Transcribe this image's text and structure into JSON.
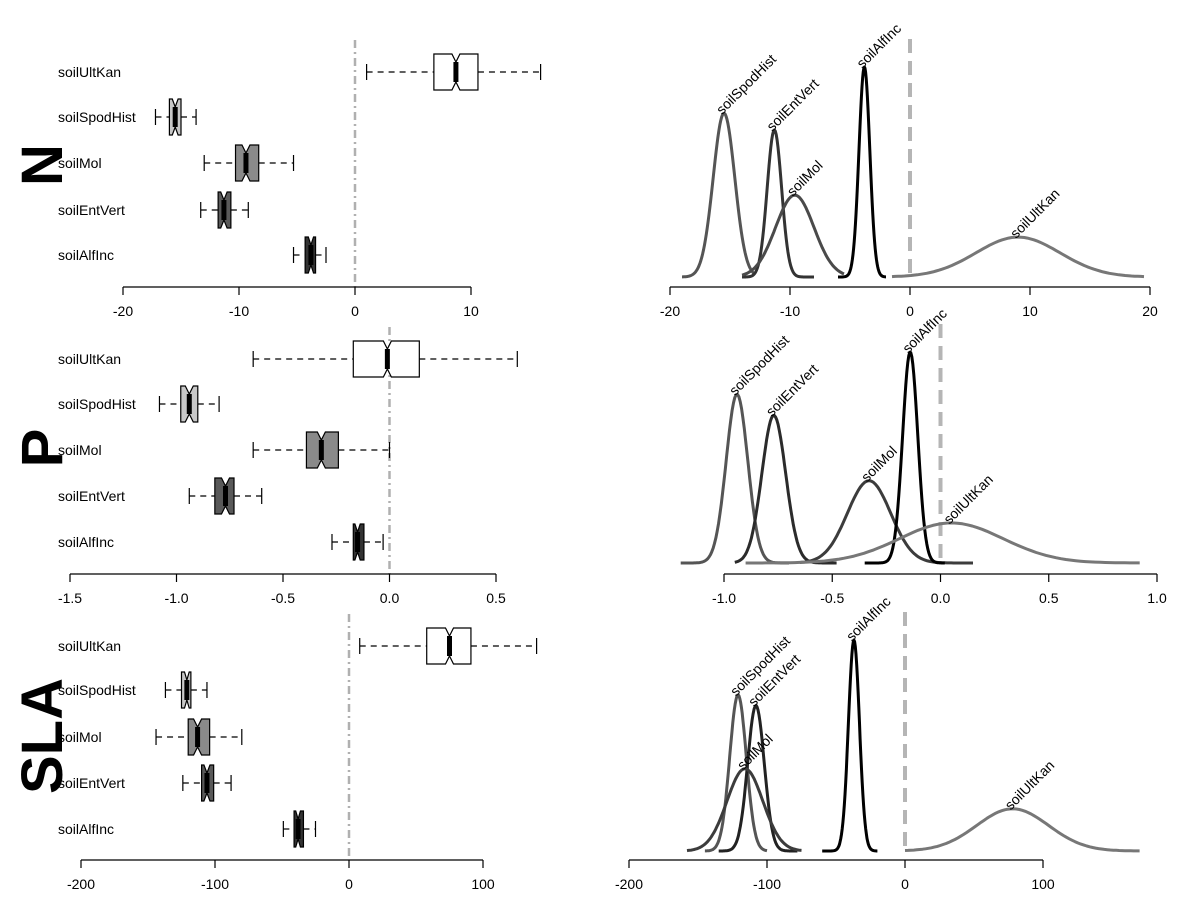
{
  "chart_data": [
    {
      "type": "boxplot",
      "panel": "N",
      "row_label": "N",
      "categories": [
        "soilUltKan",
        "soilSpodHist",
        "soilMol",
        "soilEntVert",
        "soilAlfInc"
      ],
      "fills": [
        "#ffffff",
        "#c8c8c8",
        "#8a8a8a",
        "#595959",
        "#333333"
      ],
      "boxes": [
        {
          "name": "soilUltKan",
          "whisker_low": 1.0,
          "q1": 6.8,
          "median": 8.7,
          "q3": 10.6,
          "whisker_high": 16.0
        },
        {
          "name": "soilSpodHist",
          "whisker_low": -17.2,
          "q1": -16.0,
          "median": -15.5,
          "q3": -15.0,
          "whisker_high": -13.7
        },
        {
          "name": "soilMol",
          "whisker_low": -13.0,
          "q1": -10.3,
          "median": -9.4,
          "q3": -8.3,
          "whisker_high": -5.3
        },
        {
          "name": "soilEntVert",
          "whisker_low": -13.3,
          "q1": -11.8,
          "median": -11.3,
          "q3": -10.7,
          "whisker_high": -9.2
        },
        {
          "name": "soilAlfInc",
          "whisker_low": -5.3,
          "q1": -4.3,
          "median": -3.8,
          "q3": -3.4,
          "whisker_high": -2.5
        }
      ],
      "xlim": [
        -20,
        10
      ],
      "xticks": [
        -20,
        -10,
        0,
        10
      ],
      "xtick_labels": [
        "-20",
        "-10",
        "0",
        "10"
      ],
      "ref_line": 0
    },
    {
      "type": "line",
      "panel": "N-density",
      "xlim": [
        -20,
        20
      ],
      "xticks": [
        -20,
        -10,
        0,
        10,
        20
      ],
      "xtick_labels": [
        "-20",
        "-10",
        "0",
        "10",
        "20"
      ],
      "ref_line": 0,
      "series": [
        {
          "name": "soilSpodHist",
          "color": "#555555",
          "center": -15.5,
          "sd": 0.9,
          "x0": -19.0,
          "x1": -13.0,
          "peak": 0.78
        },
        {
          "name": "soilEntVert",
          "color": "#333333",
          "center": -11.3,
          "sd": 0.6,
          "x0": -14.0,
          "x1": -8.0,
          "peak": 0.7
        },
        {
          "name": "soilMol",
          "color": "#4a4a4a",
          "center": -9.6,
          "sd": 1.6,
          "x0": -14.0,
          "x1": -5.5,
          "peak": 0.39
        },
        {
          "name": "soilAlfInc",
          "color": "#000000",
          "center": -3.8,
          "sd": 0.45,
          "x0": -6.0,
          "x1": -2.0,
          "peak": 1.0
        },
        {
          "name": "soilUltKan",
          "color": "#777777",
          "center": 9.0,
          "sd": 3.5,
          "x0": -1.5,
          "x1": 19.5,
          "peak": 0.19
        }
      ]
    },
    {
      "type": "boxplot",
      "panel": "P",
      "row_label": "P",
      "categories": [
        "soilUltKan",
        "soilSpodHist",
        "soilMol",
        "soilEntVert",
        "soilAlfInc"
      ],
      "fills": [
        "#ffffff",
        "#c8c8c8",
        "#8a8a8a",
        "#595959",
        "#333333"
      ],
      "boxes": [
        {
          "name": "soilUltKan",
          "whisker_low": -0.64,
          "q1": -0.17,
          "median": -0.01,
          "q3": 0.14,
          "whisker_high": 0.6
        },
        {
          "name": "soilSpodHist",
          "whisker_low": -1.08,
          "q1": -0.98,
          "median": -0.94,
          "q3": -0.9,
          "whisker_high": -0.8
        },
        {
          "name": "soilMol",
          "whisker_low": -0.64,
          "q1": -0.39,
          "median": -0.32,
          "q3": -0.24,
          "whisker_high": 0.0
        },
        {
          "name": "soilEntVert",
          "whisker_low": -0.94,
          "q1": -0.82,
          "median": -0.77,
          "q3": -0.73,
          "whisker_high": -0.6
        },
        {
          "name": "soilAlfInc",
          "whisker_low": -0.27,
          "q1": -0.17,
          "median": -0.15,
          "q3": -0.12,
          "whisker_high": -0.03
        }
      ],
      "xlim": [
        -1.5,
        0.5
      ],
      "xticks": [
        -1.5,
        -1.0,
        -0.5,
        0.0,
        0.5
      ],
      "xtick_labels": [
        "-1.5",
        "-1.0",
        "-0.5",
        "0.0",
        "0.5"
      ],
      "ref_line": 0
    },
    {
      "type": "line",
      "panel": "P-density",
      "xlim": [
        -1.0,
        1.0
      ],
      "xticks": [
        -1.0,
        -0.5,
        0.0,
        0.5,
        1.0
      ],
      "xtick_labels": [
        "-1.0",
        "-0.5",
        "0.0",
        "0.5",
        "1.0"
      ],
      "ref_line": 0,
      "series": [
        {
          "name": "soilSpodHist",
          "color": "#555555",
          "center": -0.94,
          "sd": 0.05,
          "x0": -1.2,
          "x1": -0.7,
          "peak": 0.8
        },
        {
          "name": "soilEntVert",
          "color": "#2b2b2b",
          "center": -0.77,
          "sd": 0.055,
          "x0": -0.95,
          "x1": -0.48,
          "peak": 0.7
        },
        {
          "name": "soilMol",
          "color": "#3c3c3c",
          "center": -0.33,
          "sd": 0.1,
          "x0": -0.65,
          "x1": 0.15,
          "peak": 0.39
        },
        {
          "name": "soilAlfInc",
          "color": "#000000",
          "center": -0.14,
          "sd": 0.035,
          "x0": -0.35,
          "x1": 0.02,
          "peak": 1.0
        },
        {
          "name": "soilUltKan",
          "color": "#777777",
          "center": 0.05,
          "sd": 0.24,
          "x0": -0.9,
          "x1": 0.92,
          "peak": 0.19
        }
      ]
    },
    {
      "type": "boxplot",
      "panel": "SLA",
      "row_label": "SLA",
      "categories": [
        "soilUltKan",
        "soilSpodHist",
        "soilMol",
        "soilEntVert",
        "soilAlfInc"
      ],
      "fills": [
        "#ffffff",
        "#c8c8c8",
        "#8a8a8a",
        "#595959",
        "#333333"
      ],
      "boxes": [
        {
          "name": "soilUltKan",
          "whisker_low": 8,
          "q1": 58,
          "median": 75,
          "q3": 91,
          "whisker_high": 140
        },
        {
          "name": "soilSpodHist",
          "whisker_low": -137,
          "q1": -125,
          "median": -121,
          "q3": -118,
          "whisker_high": -106
        },
        {
          "name": "soilMol",
          "whisker_low": -144,
          "q1": -120,
          "median": -113,
          "q3": -104,
          "whisker_high": -80
        },
        {
          "name": "soilEntVert",
          "whisker_low": -124,
          "q1": -110,
          "median": -106,
          "q3": -101,
          "whisker_high": -88
        },
        {
          "name": "soilAlfInc",
          "whisker_low": -49,
          "q1": -41,
          "median": -38,
          "q3": -34,
          "whisker_high": -25
        }
      ],
      "xlim": [
        -200,
        100
      ],
      "xticks": [
        -200,
        -100,
        0,
        100
      ],
      "xtick_labels": [
        "-200",
        "-100",
        "0",
        "100"
      ],
      "ref_line": 0
    },
    {
      "type": "line",
      "panel": "SLA-density",
      "xlim": [
        -200,
        100
      ],
      "xticks": [
        -200,
        -100,
        0,
        100
      ],
      "xtick_labels": [
        "-200",
        "-100",
        "0",
        "100"
      ],
      "ref_line": 0,
      "series": [
        {
          "name": "soilSpodHist",
          "color": "#555555",
          "center": -121,
          "sd": 6,
          "x0": -145,
          "x1": -100,
          "peak": 0.74
        },
        {
          "name": "soilEntVert",
          "color": "#222222",
          "center": -108,
          "sd": 6,
          "x0": -135,
          "x1": -78,
          "peak": 0.69
        },
        {
          "name": "soilMol",
          "color": "#3c3c3c",
          "center": -116,
          "sd": 13,
          "x0": -158,
          "x1": -75,
          "peak": 0.39
        },
        {
          "name": "soilAlfInc",
          "color": "#000000",
          "center": -37,
          "sd": 4,
          "x0": -60,
          "x1": -20,
          "peak": 1.0
        },
        {
          "name": "soilUltKan",
          "color": "#777777",
          "center": 78,
          "sd": 26,
          "x0": 0,
          "x1": 170,
          "peak": 0.2
        }
      ]
    }
  ]
}
